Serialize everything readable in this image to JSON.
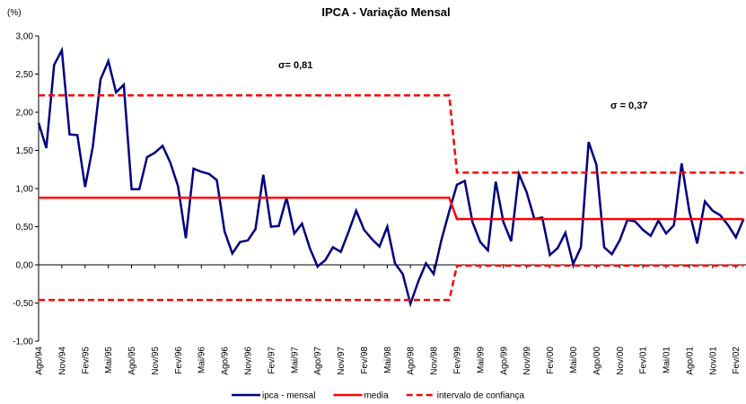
{
  "chart_data": {
    "type": "line",
    "title": "IPCA - Variação Mensal",
    "y_label": "(%)",
    "annotations": [
      "σ= 0,81",
      "σ = 0,37"
    ],
    "categories": [
      "Ago/94",
      null,
      null,
      "Nov/94",
      null,
      null,
      "Fev/95",
      null,
      null,
      "Mai/95",
      null,
      null,
      "Ago/95",
      null,
      null,
      "Nov/95",
      null,
      null,
      "Fev/96",
      null,
      null,
      "Mai/96",
      null,
      null,
      "Ago/96",
      null,
      null,
      "Nov/96",
      null,
      null,
      "Fev/97",
      null,
      null,
      "Mai/97",
      null,
      null,
      "Ago/97",
      null,
      null,
      "Nov/97",
      null,
      null,
      "Fev/98",
      null,
      null,
      "Mai/98",
      null,
      null,
      "Ago/98",
      null,
      null,
      "Nov/98",
      null,
      null,
      "Fev/99",
      null,
      null,
      "Mai/99",
      null,
      null,
      "Ago/99",
      null,
      null,
      "Nov/99",
      null,
      null,
      "Fev/00",
      null,
      null,
      "Mai/00",
      null,
      null,
      "Ago/00",
      null,
      null,
      "Nov/00",
      null,
      null,
      "Fev/01",
      null,
      null,
      "Mai/01",
      null,
      null,
      "Ago/01",
      null,
      null,
      "Nov/01",
      null,
      null,
      "Fev/02",
      null
    ],
    "series": [
      {
        "name": "ipca - mensal",
        "color": "#000080",
        "values": [
          1.86,
          1.53,
          2.62,
          2.81,
          1.71,
          1.7,
          1.02,
          1.55,
          2.43,
          2.67,
          2.26,
          2.36,
          0.99,
          0.99,
          1.41,
          1.47,
          1.56,
          1.34,
          1.03,
          0.35,
          1.26,
          1.22,
          1.19,
          1.11,
          0.44,
          0.15,
          0.3,
          0.32,
          0.47,
          1.18,
          0.5,
          0.51,
          0.88,
          0.41,
          0.54,
          0.22,
          -0.02,
          0.06,
          0.23,
          0.17,
          0.43,
          0.71,
          0.46,
          0.34,
          0.24,
          0.5,
          0.02,
          -0.12,
          -0.51,
          -0.22,
          0.02,
          -0.12,
          0.33,
          0.7,
          1.05,
          1.1,
          0.56,
          0.3,
          0.19,
          1.09,
          0.56,
          0.31,
          1.19,
          0.95,
          0.6,
          0.62,
          0.13,
          0.22,
          0.42,
          0.01,
          0.23,
          1.61,
          1.31,
          0.23,
          0.14,
          0.32,
          0.59,
          0.57,
          0.46,
          0.38,
          0.58,
          0.41,
          0.52,
          1.33,
          0.7,
          0.28,
          0.83,
          0.71,
          0.65,
          0.52,
          0.36,
          0.6
        ]
      },
      {
        "name": "media",
        "color": "#ff0000",
        "values": [
          0.88,
          0.88,
          0.88,
          0.88,
          0.88,
          0.88,
          0.88,
          0.88,
          0.88,
          0.88,
          0.88,
          0.88,
          0.88,
          0.88,
          0.88,
          0.88,
          0.88,
          0.88,
          0.88,
          0.88,
          0.88,
          0.88,
          0.88,
          0.88,
          0.88,
          0.88,
          0.88,
          0.88,
          0.88,
          0.88,
          0.88,
          0.88,
          0.88,
          0.88,
          0.88,
          0.88,
          0.88,
          0.88,
          0.88,
          0.88,
          0.88,
          0.88,
          0.88,
          0.88,
          0.88,
          0.88,
          0.88,
          0.88,
          0.88,
          0.88,
          0.88,
          0.88,
          0.88,
          0.88,
          0.6,
          0.6,
          0.6,
          0.6,
          0.6,
          0.6,
          0.6,
          0.6,
          0.6,
          0.6,
          0.6,
          0.6,
          0.6,
          0.6,
          0.6,
          0.6,
          0.6,
          0.6,
          0.6,
          0.6,
          0.6,
          0.6,
          0.6,
          0.6,
          0.6,
          0.6,
          0.6,
          0.6,
          0.6,
          0.6,
          0.6,
          0.6,
          0.6,
          0.6,
          0.6,
          0.6,
          0.6,
          0.6
        ]
      },
      {
        "name": "intervalo de confiança",
        "color": "#ff0000",
        "dashed": true,
        "upper": [
          2.22,
          2.22,
          2.22,
          2.22,
          2.22,
          2.22,
          2.22,
          2.22,
          2.22,
          2.22,
          2.22,
          2.22,
          2.22,
          2.22,
          2.22,
          2.22,
          2.22,
          2.22,
          2.22,
          2.22,
          2.22,
          2.22,
          2.22,
          2.22,
          2.22,
          2.22,
          2.22,
          2.22,
          2.22,
          2.22,
          2.22,
          2.22,
          2.22,
          2.22,
          2.22,
          2.22,
          2.22,
          2.22,
          2.22,
          2.22,
          2.22,
          2.22,
          2.22,
          2.22,
          2.22,
          2.22,
          2.22,
          2.22,
          2.22,
          2.22,
          2.22,
          2.22,
          2.22,
          2.22,
          1.21,
          1.21,
          1.21,
          1.21,
          1.21,
          1.21,
          1.21,
          1.21,
          1.21,
          1.21,
          1.21,
          1.21,
          1.21,
          1.21,
          1.21,
          1.21,
          1.21,
          1.21,
          1.21,
          1.21,
          1.21,
          1.21,
          1.21,
          1.21,
          1.21,
          1.21,
          1.21,
          1.21,
          1.21,
          1.21,
          1.21,
          1.21,
          1.21,
          1.21,
          1.21,
          1.21,
          1.21,
          1.21
        ],
        "lower": [
          -0.46,
          -0.46,
          -0.46,
          -0.46,
          -0.46,
          -0.46,
          -0.46,
          -0.46,
          -0.46,
          -0.46,
          -0.46,
          -0.46,
          -0.46,
          -0.46,
          -0.46,
          -0.46,
          -0.46,
          -0.46,
          -0.46,
          -0.46,
          -0.46,
          -0.46,
          -0.46,
          -0.46,
          -0.46,
          -0.46,
          -0.46,
          -0.46,
          -0.46,
          -0.46,
          -0.46,
          -0.46,
          -0.46,
          -0.46,
          -0.46,
          -0.46,
          -0.46,
          -0.46,
          -0.46,
          -0.46,
          -0.46,
          -0.46,
          -0.46,
          -0.46,
          -0.46,
          -0.46,
          -0.46,
          -0.46,
          -0.46,
          -0.46,
          -0.46,
          -0.46,
          -0.46,
          -0.46,
          -0.01,
          -0.01,
          -0.01,
          -0.01,
          -0.01,
          -0.01,
          -0.01,
          -0.01,
          -0.01,
          -0.01,
          -0.01,
          -0.01,
          -0.01,
          -0.01,
          -0.01,
          -0.01,
          -0.01,
          -0.01,
          -0.01,
          -0.01,
          -0.01,
          -0.01,
          -0.01,
          -0.01,
          -0.01,
          -0.01,
          -0.01,
          -0.01,
          -0.01,
          -0.01,
          -0.01,
          -0.01,
          -0.01,
          -0.01,
          -0.01,
          -0.01,
          -0.01,
          -0.01
        ]
      }
    ],
    "ylim": [
      -1,
      3
    ],
    "yticks": [
      {
        "value": -1,
        "label": "-1,00"
      },
      {
        "value": -0.5,
        "label": "-0,50"
      },
      {
        "value": 0,
        "label": "0,00"
      },
      {
        "value": 0.5,
        "label": "0,50"
      },
      {
        "value": 1,
        "label": "1,00"
      },
      {
        "value": 1.5,
        "label": "1,50"
      },
      {
        "value": 2,
        "label": "2,00"
      },
      {
        "value": 2.5,
        "label": "2,50"
      },
      {
        "value": 3,
        "label": "3,00"
      }
    ],
    "grid": false,
    "legend": "bottom"
  }
}
